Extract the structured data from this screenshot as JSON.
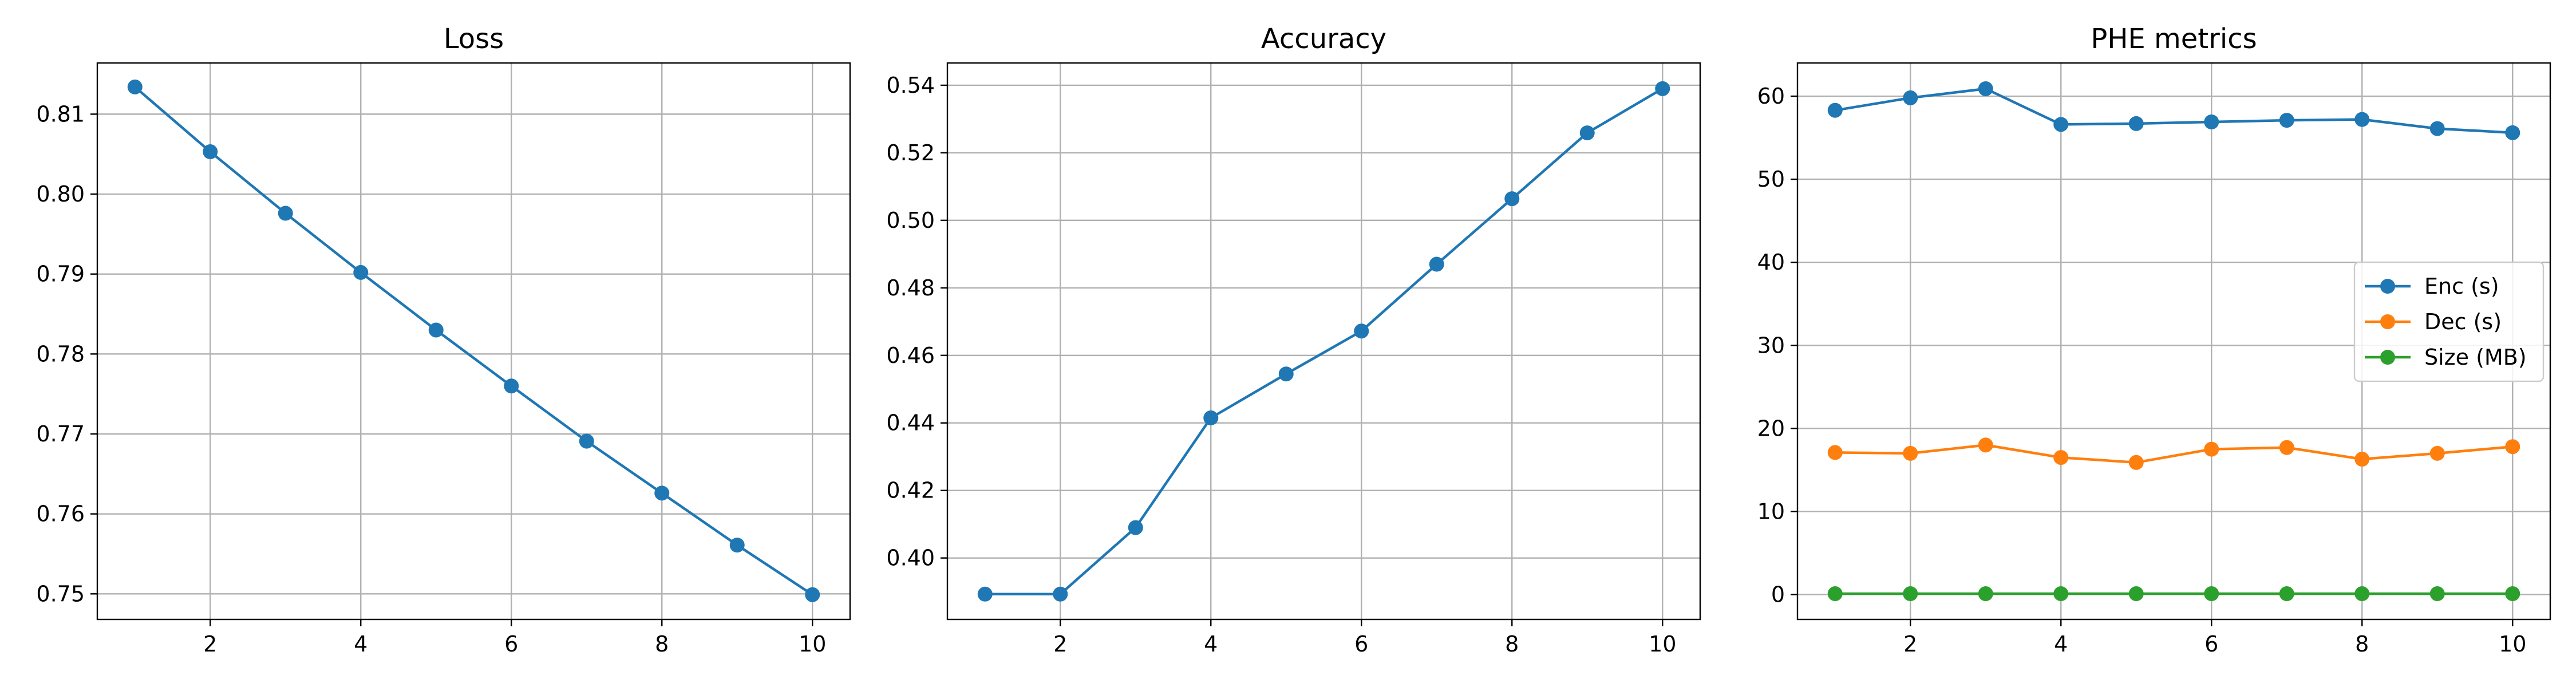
{
  "chart_data": [
    {
      "type": "line",
      "title": "Loss",
      "xlabel": "",
      "ylabel": "",
      "xlim": [
        0.5,
        10.5
      ],
      "ylim": [
        0.7468,
        0.8164
      ],
      "xticks": [
        2,
        4,
        6,
        8,
        10
      ],
      "xtick_labels": [
        "2",
        "4",
        "6",
        "8",
        "10"
      ],
      "yticks": [
        0.75,
        0.76,
        0.77,
        0.78,
        0.79,
        0.8,
        0.81
      ],
      "ytick_labels": [
        "0.75",
        "0.76",
        "0.77",
        "0.78",
        "0.79",
        "0.80",
        "0.81"
      ],
      "grid": true,
      "x": [
        1,
        2,
        3,
        4,
        5,
        6,
        7,
        8,
        9,
        10
      ],
      "series": [
        {
          "color": "#1f77b4",
          "marker": "circle",
          "values": [
            0.8134,
            0.8053,
            0.7976,
            0.7902,
            0.783,
            0.776,
            0.7691,
            0.7626,
            0.7561,
            0.7499
          ]
        }
      ]
    },
    {
      "type": "line",
      "title": "Accuracy",
      "xlabel": "",
      "ylabel": "",
      "xlim": [
        0.5,
        10.5
      ],
      "ylim": [
        0.3818,
        0.5466
      ],
      "xticks": [
        2,
        4,
        6,
        8,
        10
      ],
      "xtick_labels": [
        "2",
        "4",
        "6",
        "8",
        "10"
      ],
      "yticks": [
        0.4,
        0.42,
        0.44,
        0.46,
        0.48,
        0.5,
        0.52,
        0.54
      ],
      "ytick_labels": [
        "0.40",
        "0.42",
        "0.44",
        "0.46",
        "0.48",
        "0.50",
        "0.52",
        "0.54"
      ],
      "grid": true,
      "x": [
        1,
        2,
        3,
        4,
        5,
        6,
        7,
        8,
        9,
        10
      ],
      "series": [
        {
          "color": "#1f77b4",
          "marker": "circle",
          "values": [
            0.3893,
            0.3893,
            0.409,
            0.4415,
            0.4545,
            0.4672,
            0.487,
            0.5064,
            0.5259,
            0.539
          ]
        }
      ]
    },
    {
      "type": "line",
      "title": "PHE metrics",
      "xlabel": "",
      "ylabel": "",
      "xlim": [
        0.5,
        10.5
      ],
      "ylim": [
        -3.0,
        64.0
      ],
      "xticks": [
        2,
        4,
        6,
        8,
        10
      ],
      "xtick_labels": [
        "2",
        "4",
        "6",
        "8",
        "10"
      ],
      "yticks": [
        0,
        10,
        20,
        30,
        40,
        50,
        60
      ],
      "ytick_labels": [
        "0",
        "10",
        "20",
        "30",
        "40",
        "50",
        "60"
      ],
      "grid": true,
      "legend": "center-right",
      "x": [
        1,
        2,
        3,
        4,
        5,
        6,
        7,
        8,
        9,
        10
      ],
      "series": [
        {
          "name": "Enc (s)",
          "color": "#1f77b4",
          "marker": "circle",
          "values": [
            58.3,
            59.8,
            60.9,
            56.6,
            56.7,
            56.9,
            57.1,
            57.2,
            56.1,
            55.6
          ]
        },
        {
          "name": "Dec (s)",
          "color": "#ff7f0e",
          "marker": "circle",
          "values": [
            17.1,
            17.0,
            18.0,
            16.5,
            15.9,
            17.5,
            17.7,
            16.3,
            17.0,
            17.8
          ]
        },
        {
          "name": "Size (MB)",
          "color": "#2ca02c",
          "marker": "circle",
          "values": [
            0.1,
            0.1,
            0.1,
            0.1,
            0.1,
            0.1,
            0.1,
            0.1,
            0.1,
            0.1
          ]
        }
      ]
    }
  ]
}
